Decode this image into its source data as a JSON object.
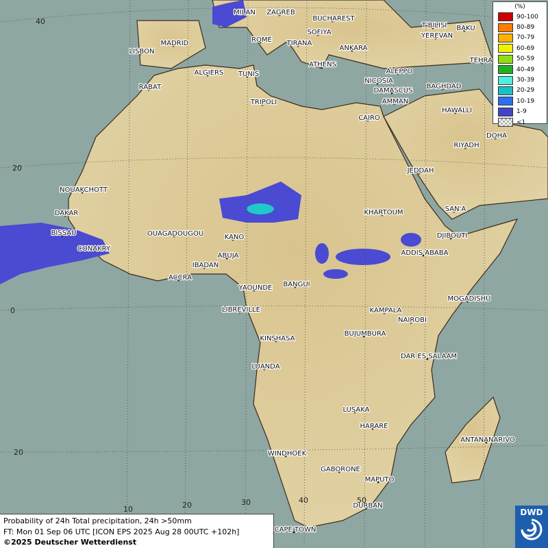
{
  "cities": [
    "MILAN",
    "ZAGREB",
    "BUCHAREST",
    "MADRID",
    "ROME",
    "SOFIYA",
    "T'BILISI",
    "BAKU",
    "YEREVAN",
    "LISBON",
    "TIRANA",
    "ANKARA",
    "TEHRAN",
    "ALGIERS",
    "TUNIS",
    "ATHENS",
    "ALEPPO",
    "RABAT",
    "NICOSIA",
    "BAGHDAD",
    "DAMASCUS",
    "TRIPOLI",
    "AMMAN",
    "CAIRO",
    "HAWALLI",
    "DOHA",
    "RIYADH",
    "JEDDAH",
    "NOUAKCHOTT",
    "DAKAR",
    "KHARTOUM",
    "SAN'A",
    "BISSAU",
    "DJIBOUTI",
    "OUAGADOUGOU",
    "KANO",
    "CONAKRY",
    "ADDIS ABABA",
    "ABUJA",
    "IBADAN",
    "ACCRA",
    "YAOUNDE",
    "BANGUI",
    "MOGADISHU",
    "LIBREVILLE",
    "KAMPALA",
    "NAIROBI",
    "KINSHASA",
    "BUJUMBURA",
    "DAR ES SALAAM",
    "LUANDA",
    "LUSAKA",
    "HARARE",
    "ANTANANARIVO",
    "WINDHOEK",
    "GABORONE",
    "MAPUTO",
    "DURBAN",
    "CAPE TOWN"
  ],
  "latitude_labels": [
    40,
    20,
    0,
    20
  ],
  "longitude_labels": [
    10,
    20,
    30,
    40,
    50
  ],
  "legend": {
    "title": "(%)",
    "items": [
      {
        "label": "90-100",
        "color": "#cc0000"
      },
      {
        "label": "80-89",
        "color": "#ff7f00"
      },
      {
        "label": "70-79",
        "color": "#ffb000"
      },
      {
        "label": "60-69",
        "color": "#f0f000"
      },
      {
        "label": "50-59",
        "color": "#90dd10"
      },
      {
        "label": "40-49",
        "color": "#22b022"
      },
      {
        "label": "30-39",
        "color": "#50ece0"
      },
      {
        "label": "20-29",
        "color": "#18c0c8"
      },
      {
        "label": "10-19",
        "color": "#2a70f0"
      },
      {
        "label": "1-9",
        "color": "#4444c8"
      },
      {
        "label": "<1",
        "color": "#b0b0b0"
      }
    ]
  },
  "footer": {
    "line1": "Probability of 24h Total precipitation, 24h >50mm",
    "line2": "FT: Mon 01 Sep 06 UTC [ICON EPS 2025 Aug 28 00UTC +102h]",
    "line3": "©2025 Deutscher Wetterdienst"
  },
  "logo": "DWD"
}
